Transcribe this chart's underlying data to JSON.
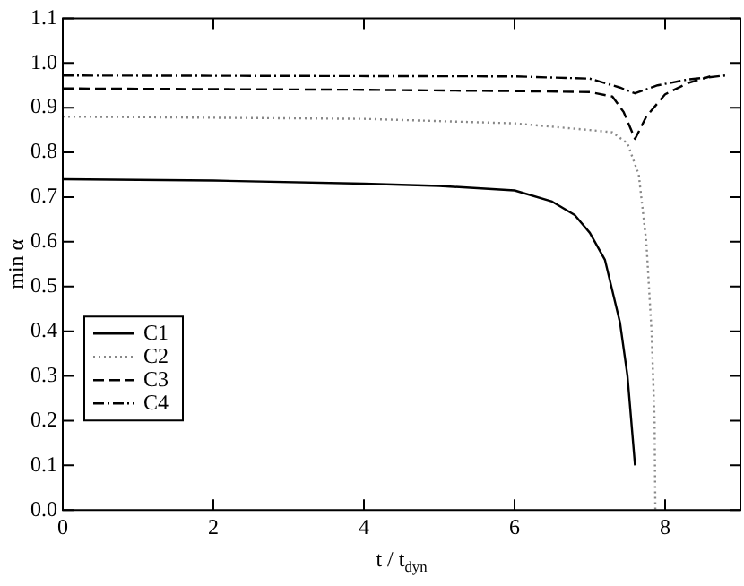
{
  "chart_data": {
    "type": "line",
    "xlabel": "t / t$_{dyn}$",
    "ylabel": "min α",
    "xlim": [
      0,
      9
    ],
    "xticks": [
      0,
      2,
      4,
      6,
      8
    ],
    "ylim": [
      0,
      1.1
    ],
    "yticks": [
      {
        "value": 0,
        "label": "0.0"
      },
      {
        "value": 0.1,
        "label": "0.1"
      },
      {
        "value": 0.2,
        "label": "0.2"
      },
      {
        "value": 0.3,
        "label": "0.3"
      },
      {
        "value": 0.4,
        "label": "0.4"
      },
      {
        "value": 0.5,
        "label": "0.5"
      },
      {
        "value": 0.6,
        "label": "0.6"
      },
      {
        "value": 0.7,
        "label": "0.7"
      },
      {
        "value": 0.8,
        "label": "0.8"
      },
      {
        "value": 0.9,
        "label": "0.9"
      },
      {
        "value": 1,
        "label": "1.0"
      },
      {
        "value": 1.1,
        "label": "1.1"
      }
    ],
    "grid": false,
    "legend": "bottom left",
    "marker": "none",
    "series": [
      {
        "name": "C1",
        "color": "#000000",
        "line_style": "solid",
        "x": [
          0,
          2,
          4,
          5,
          6,
          6.5,
          6.8,
          7.0,
          7.2,
          7.4,
          7.5,
          7.6
        ],
        "values": [
          0.74,
          0.737,
          0.73,
          0.725,
          0.715,
          0.69,
          0.66,
          0.62,
          0.56,
          0.42,
          0.3,
          0.1
        ]
      },
      {
        "name": "C2",
        "color": "#888888",
        "line_style": "dotted",
        "x": [
          0,
          4,
          6,
          7,
          7.3,
          7.5,
          7.65,
          7.75,
          7.82,
          7.86,
          7.87
        ],
        "values": [
          0.88,
          0.875,
          0.865,
          0.85,
          0.845,
          0.82,
          0.75,
          0.6,
          0.4,
          0.2,
          0
        ]
      },
      {
        "name": "C3",
        "color": "#000000",
        "line_style": "dashed",
        "x": [
          0,
          4,
          6,
          7,
          7.3,
          7.45,
          7.6,
          7.75,
          8.0,
          8.3,
          8.6
        ],
        "values": [
          0.943,
          0.94,
          0.937,
          0.935,
          0.925,
          0.89,
          0.83,
          0.88,
          0.93,
          0.955,
          0.97
        ]
      },
      {
        "name": "C4",
        "color": "#000000",
        "line_style": "dashdot",
        "x": [
          0,
          6,
          7,
          7.4,
          7.6,
          7.9,
          8.3,
          8.8
        ],
        "values": [
          0.972,
          0.97,
          0.965,
          0.945,
          0.932,
          0.95,
          0.963,
          0.972
        ]
      }
    ]
  }
}
